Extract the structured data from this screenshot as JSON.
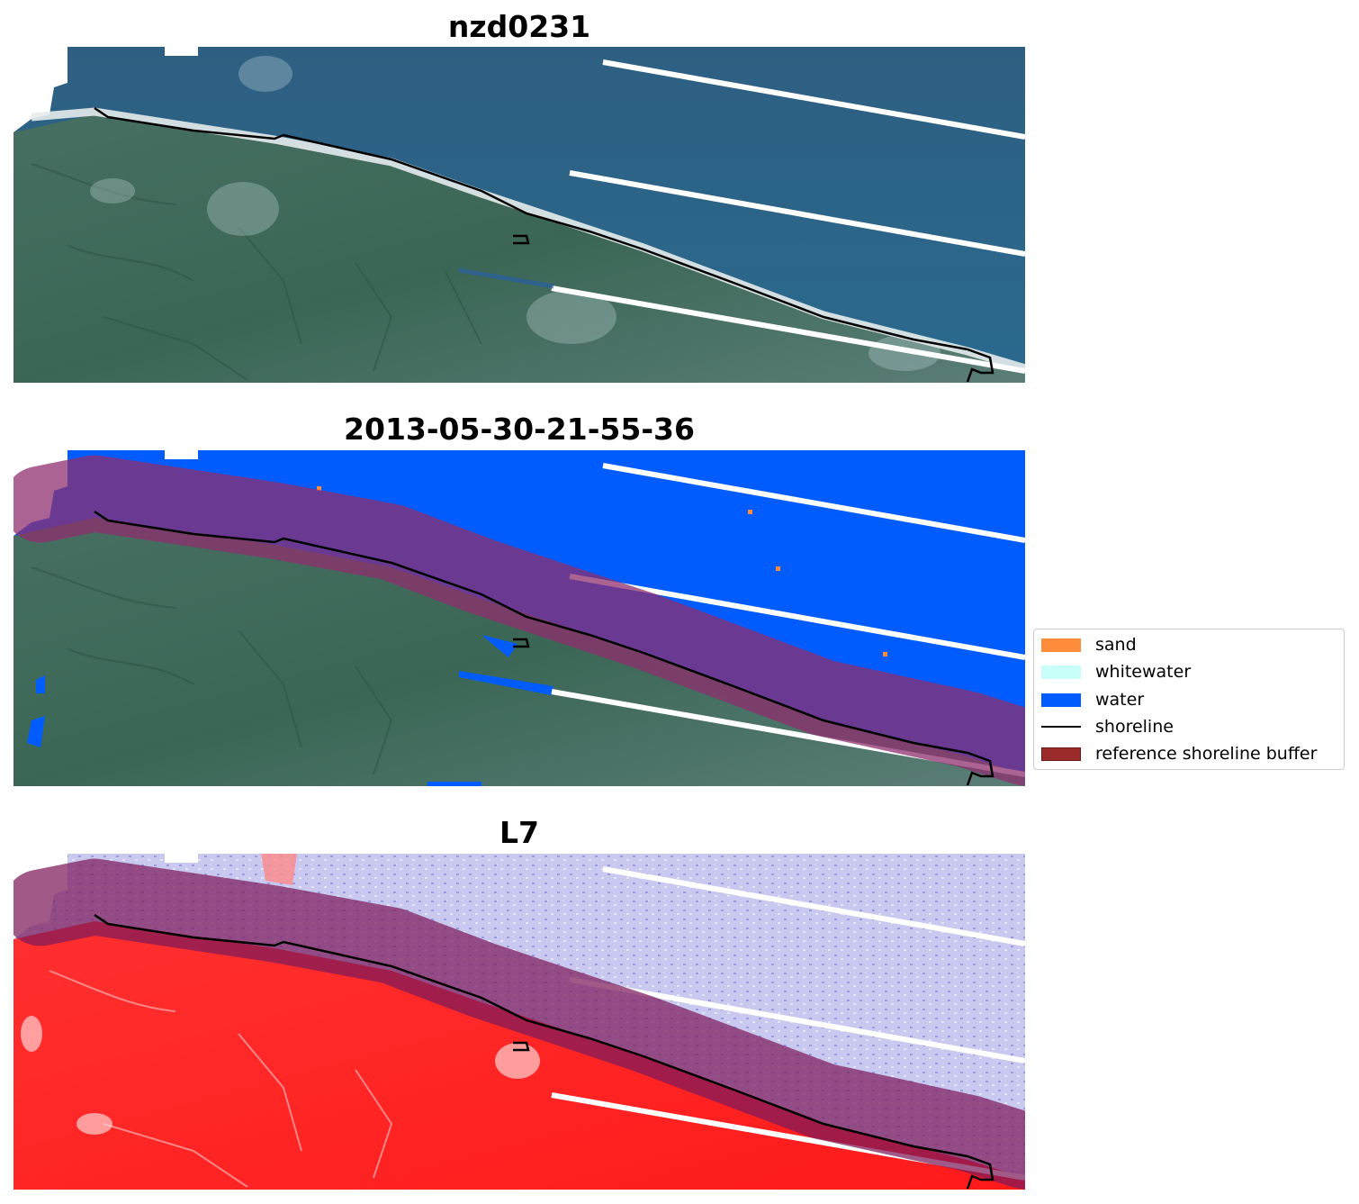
{
  "panels": [
    {
      "title": "nzd0231"
    },
    {
      "title": "2013-05-30-21-55-36"
    },
    {
      "title": "L7"
    }
  ],
  "legend": {
    "items": [
      {
        "label": "sand",
        "color": "#ff8c3b"
      },
      {
        "label": "whitewater",
        "color": "#c8fff8"
      },
      {
        "label": "water",
        "color": "#005cff"
      },
      {
        "label": "shoreline",
        "color": "#000000"
      },
      {
        "label": "reference shoreline buffer",
        "color": "#9b2a2a"
      }
    ]
  },
  "colors": {
    "rgb_ocean": "#2f6486",
    "rgb_land": "#3f6a5a",
    "classified_water": "#005cff",
    "buffer_overlay": "#8e2f6d",
    "index_water": "#c8c8ee",
    "index_land": "#ff2a2a"
  }
}
